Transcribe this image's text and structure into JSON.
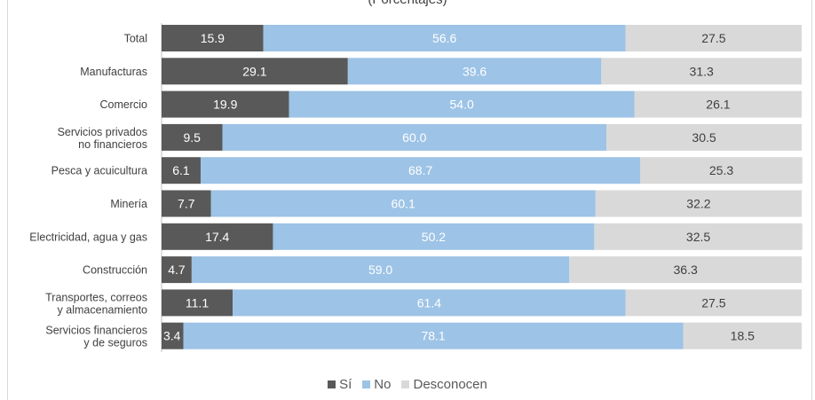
{
  "chart_data": {
    "type": "bar",
    "orientation": "horizontal",
    "stacked": true,
    "subtitle": "(Porcentajes)",
    "categories": [
      "Total",
      "Manufacturas",
      "Comercio",
      "Servicios privados no financieros",
      "Pesca y acuicultura",
      "Minería",
      "Electricidad, agua y gas",
      "Construcción",
      "Transportes, correos y almacenamiento",
      "Servicios financieros y de seguros"
    ],
    "category_lines": [
      [
        "Total"
      ],
      [
        "Manufacturas"
      ],
      [
        "Comercio"
      ],
      [
        "Servicios privados",
        "no financieros"
      ],
      [
        "Pesca y acuicultura"
      ],
      [
        "Minería"
      ],
      [
        "Electricidad, agua y gas"
      ],
      [
        "Construcción"
      ],
      [
        "Transportes, correos",
        "y almacenamiento"
      ],
      [
        "Servicios financieros",
        "y de seguros"
      ]
    ],
    "series": [
      {
        "name": "Sí",
        "color": "#595959",
        "label_color": "#ffffff",
        "values": [
          15.9,
          29.1,
          19.9,
          9.5,
          6.1,
          7.7,
          17.4,
          4.7,
          11.1,
          3.4
        ]
      },
      {
        "name": "No",
        "color": "#9dc3e6",
        "label_color": "#ffffff",
        "values": [
          56.6,
          39.6,
          54.0,
          60.0,
          68.7,
          60.1,
          50.2,
          59.0,
          61.4,
          78.1
        ]
      },
      {
        "name": "Desconocen",
        "color": "#d9d9d9",
        "label_color": "#404040",
        "values": [
          27.5,
          31.3,
          26.1,
          30.5,
          25.3,
          32.2,
          32.5,
          36.3,
          27.5,
          18.5
        ]
      }
    ],
    "xlim": [
      0,
      100
    ],
    "legend_position": "bottom",
    "grid": false
  }
}
